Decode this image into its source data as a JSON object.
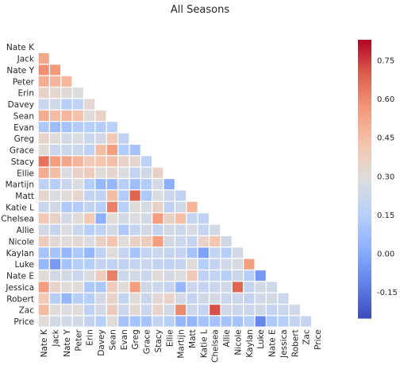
{
  "chart_data": {
    "type": "heatmap",
    "title": "All Seasons",
    "labels": [
      "Nate K",
      "Jack",
      "Nate Y",
      "Peter",
      "Erin",
      "Davey",
      "Sean",
      "Evan",
      "Greg",
      "Grace",
      "Stacy",
      "Ellie",
      "Martijn",
      "Matt",
      "Katie L",
      "Chelsea",
      "Allie",
      "Nicole",
      "Kaylan",
      "Luke",
      "Nate E",
      "Jessica",
      "Robert",
      "Zac",
      "Price"
    ],
    "mask": "upper-triangle",
    "colormap": "coolwarm",
    "vmin": -0.25,
    "vmax": 0.83,
    "colorbar_ticks": [
      -0.15,
      0.0,
      0.15,
      0.3,
      0.45,
      0.6,
      0.75
    ],
    "colorbar_tick_labels": [
      "-0.15",
      "0.00",
      "0.15",
      "0.30",
      "0.45",
      "0.60",
      "0.75"
    ],
    "matrix": [
      [],
      [
        0.52
      ],
      [
        0.58,
        0.56
      ],
      [
        0.5,
        0.48,
        0.47
      ],
      [
        0.35,
        0.33,
        0.31,
        0.29
      ],
      [
        0.22,
        0.24,
        0.15,
        0.18,
        0.32
      ],
      [
        0.5,
        0.45,
        0.47,
        0.43,
        0.3,
        0.35
      ],
      [
        0.12,
        0.07,
        0.1,
        0.14,
        0.15,
        0.14,
        0.16
      ],
      [
        0.34,
        0.3,
        0.25,
        0.28,
        0.22,
        0.25,
        0.4,
        0.18
      ],
      [
        0.3,
        0.22,
        0.22,
        0.22,
        0.18,
        0.45,
        0.55,
        0.14,
        0.1
      ],
      [
        0.65,
        0.55,
        0.52,
        0.48,
        0.4,
        0.42,
        0.44,
        0.35,
        0.33,
        0.17
      ],
      [
        0.5,
        0.45,
        0.28,
        0.35,
        0.38,
        0.3,
        0.33,
        0.28,
        0.2,
        0.24,
        0.36
      ],
      [
        0.18,
        0.15,
        0.22,
        0.28,
        0.15,
        0.05,
        0.05,
        0.15,
        0.08,
        0.14,
        0.25,
        0.02
      ],
      [
        0.33,
        0.28,
        0.3,
        0.33,
        0.2,
        0.18,
        0.45,
        0.14,
        0.68,
        0.12,
        0.28,
        0.22,
        0.18
      ],
      [
        0.22,
        0.25,
        0.12,
        0.14,
        0.2,
        0.15,
        0.62,
        0.16,
        0.3,
        0.26,
        0.35,
        0.18,
        0.24,
        0.48
      ],
      [
        0.4,
        0.35,
        0.25,
        0.3,
        0.4,
        0.02,
        0.3,
        0.25,
        0.28,
        0.25,
        0.55,
        0.36,
        0.44,
        0.2,
        0.18
      ],
      [
        0.25,
        0.2,
        0.28,
        0.22,
        0.15,
        0.18,
        0.25,
        0.12,
        0.2,
        0.25,
        0.2,
        0.25,
        0.22,
        0.26,
        0.2,
        0.25
      ],
      [
        0.38,
        0.32,
        0.3,
        0.32,
        0.28,
        0.36,
        0.42,
        0.3,
        0.35,
        0.38,
        0.55,
        0.25,
        0.22,
        0.2,
        0.35,
        0.42,
        0.24
      ],
      [
        0.1,
        0.1,
        0.05,
        0.12,
        0.05,
        0.18,
        0.3,
        0.2,
        0.1,
        0.2,
        0.22,
        0.2,
        0.2,
        0.1,
        -0.02,
        0.2,
        0.15,
        0.25
      ],
      [
        0.05,
        -0.05,
        0.1,
        0.15,
        0.15,
        0.2,
        0.18,
        0.18,
        0.2,
        0.22,
        0.2,
        0.18,
        0.2,
        0.3,
        0.15,
        0.2,
        0.24,
        0.26,
        0.55
      ],
      [
        0.3,
        0.25,
        0.25,
        0.22,
        0.28,
        0.38,
        0.62,
        0.22,
        0.25,
        0.22,
        0.3,
        0.25,
        0.28,
        0.4,
        0.18,
        0.2,
        0.15,
        0.22,
        0.15,
        -0.05
      ],
      [
        0.55,
        0.35,
        0.3,
        0.3,
        0.12,
        0.12,
        0.38,
        0.3,
        0.55,
        0.24,
        0.22,
        0.2,
        0.05,
        0.22,
        0.2,
        0.22,
        0.24,
        0.68,
        0.2,
        0.25,
        0.24
      ],
      [
        0.4,
        0.15,
        0.05,
        0.15,
        0.15,
        0.25,
        0.35,
        0.2,
        0.3,
        0.22,
        0.32,
        0.35,
        0.25,
        0.2,
        0.24,
        0.25,
        0.22,
        0.22,
        0.2,
        0.24,
        0.25,
        0.22
      ],
      [
        0.45,
        0.3,
        0.28,
        0.3,
        0.18,
        0.25,
        0.38,
        0.22,
        0.32,
        0.22,
        0.34,
        0.25,
        0.6,
        0.22,
        0.2,
        0.72,
        0.24,
        0.22,
        0.22,
        0.24,
        0.2,
        0.22,
        0.24
      ],
      [
        0.3,
        0.25,
        0.25,
        0.25,
        0.2,
        0.15,
        0.3,
        0.1,
        0.1,
        0.1,
        0.2,
        0.15,
        0.05,
        0.05,
        0.1,
        0.1,
        0.1,
        0.1,
        0.15,
        -0.1,
        0.12,
        0.15,
        0.2,
        0.2
      ]
    ]
  }
}
